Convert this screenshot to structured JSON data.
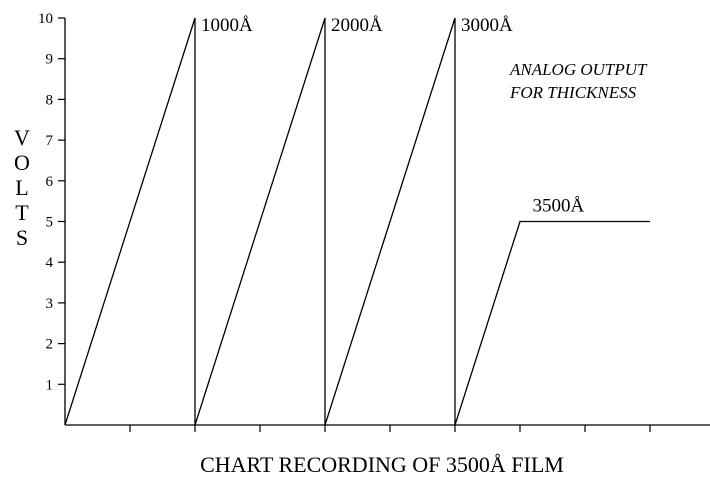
{
  "chart_data": {
    "type": "line",
    "title": "",
    "xlabel": "CHART RECORDING OF 3500Å FILM",
    "ylabel": "VOLTS",
    "ylim": [
      0,
      10
    ],
    "xlim": [
      0,
      10
    ],
    "yticks": [
      "1",
      "2",
      "3",
      "4",
      "5",
      "6",
      "7",
      "8",
      "9",
      "10"
    ],
    "grid": false,
    "note": [
      "ANALOG OUTPUT",
      "FOR THICKNESS"
    ],
    "series": [
      {
        "x": [
          0,
          2,
          2,
          4,
          4,
          6,
          6,
          7,
          9
        ],
        "y": [
          0,
          10,
          0,
          10,
          0,
          10,
          0,
          5,
          5
        ]
      }
    ],
    "annotations": [
      {
        "text": "1000Å",
        "x": 2,
        "y": 10
      },
      {
        "text": "2000Å",
        "x": 4,
        "y": 10
      },
      {
        "text": "3000Å",
        "x": 6,
        "y": 10
      },
      {
        "text": "3500Å",
        "x": 7.5,
        "y": 5
      }
    ]
  }
}
